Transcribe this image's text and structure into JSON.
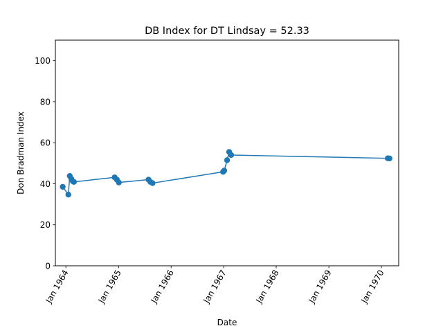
{
  "chart_data": {
    "type": "line",
    "title": "DB Index for DT Lindsay = 52.33",
    "xlabel": "Date",
    "ylabel": "Don Bradman Index",
    "ylim": [
      0,
      110
    ],
    "xlim": [
      "1963-10-20",
      "1970-05-01"
    ],
    "yticks": [
      0,
      20,
      40,
      60,
      80,
      100
    ],
    "xticks": [
      {
        "date": "1964-01-01",
        "label": "Jan 1964"
      },
      {
        "date": "1965-01-01",
        "label": "Jan 1965"
      },
      {
        "date": "1966-01-01",
        "label": "Jan 1966"
      },
      {
        "date": "1967-01-01",
        "label": "Jan 1967"
      },
      {
        "date": "1968-01-01",
        "label": "Jan 1968"
      },
      {
        "date": "1969-01-01",
        "label": "Jan 1969"
      },
      {
        "date": "1970-01-01",
        "label": "Jan 1970"
      }
    ],
    "grid": false,
    "series": [
      {
        "color": "#1f77b4",
        "marker": "circle",
        "points": [
          {
            "x": "1963-12-10",
            "y": 38.5
          },
          {
            "x": "1964-01-18",
            "y": 34.7
          },
          {
            "x": "1964-01-28",
            "y": 43.8
          },
          {
            "x": "1964-02-08",
            "y": 42.3
          },
          {
            "x": "1964-02-18",
            "y": 41.2
          },
          {
            "x": "1964-02-26",
            "y": 40.9
          },
          {
            "x": "1964-12-05",
            "y": 43.1
          },
          {
            "x": "1964-12-20",
            "y": 42.0
          },
          {
            "x": "1965-01-03",
            "y": 40.6
          },
          {
            "x": "1965-07-28",
            "y": 42.0
          },
          {
            "x": "1965-08-10",
            "y": 40.9
          },
          {
            "x": "1965-08-25",
            "y": 40.3
          },
          {
            "x": "1966-12-28",
            "y": 45.8
          },
          {
            "x": "1967-01-05",
            "y": 46.4
          },
          {
            "x": "1967-01-25",
            "y": 51.5
          },
          {
            "x": "1967-02-08",
            "y": 55.5
          },
          {
            "x": "1967-02-22",
            "y": 54.0
          },
          {
            "x": "1970-02-14",
            "y": 52.4
          },
          {
            "x": "1970-02-26",
            "y": 52.33
          }
        ]
      }
    ]
  }
}
